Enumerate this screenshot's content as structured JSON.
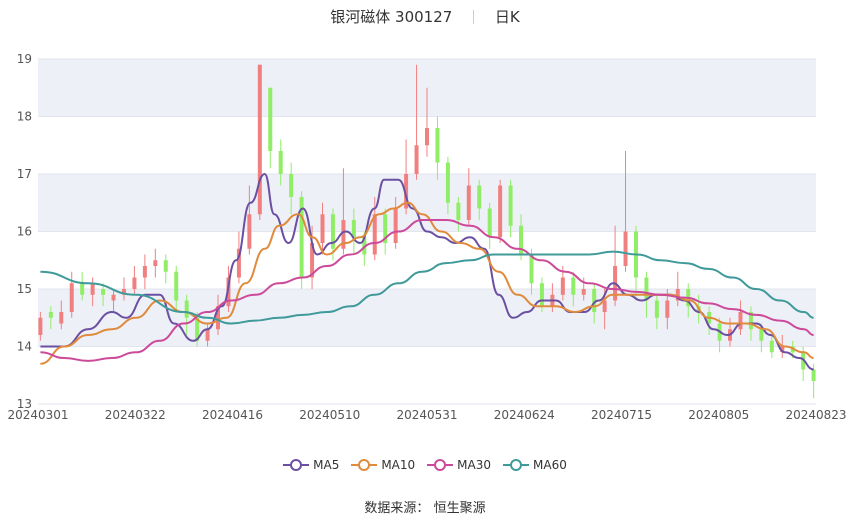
{
  "header": {
    "title": "银河磁体 300127",
    "period": "日K"
  },
  "source": {
    "label": "数据来源：",
    "value": "恒生聚源"
  },
  "chart_data": {
    "type": "candlestick",
    "ylim": [
      13,
      19
    ],
    "yticks": [
      13,
      14,
      15,
      16,
      17,
      18,
      19
    ],
    "xticks": [
      "20240301",
      "20240322",
      "20240416",
      "20240510",
      "20240531",
      "20240624",
      "20240715",
      "20240805",
      "20240823"
    ],
    "colors": {
      "up": "#f08080",
      "down": "#90ee66",
      "ma5": "#6b4fa0",
      "ma10": "#e08a3c",
      "ma30": "#cc4a99",
      "ma60": "#3f9a9a",
      "band": "#eef0f8",
      "grid": "#e2e5ee"
    },
    "series": [
      {
        "name": "MA5",
        "key": "ma5",
        "points": [
          [
            0,
            14.0
          ],
          [
            5,
            14.0
          ],
          [
            10,
            14.3
          ],
          [
            15,
            14.6
          ],
          [
            18,
            14.5
          ],
          [
            22,
            14.9
          ],
          [
            25,
            14.9
          ],
          [
            28,
            14.4
          ],
          [
            32,
            14.1
          ],
          [
            35,
            14.3
          ],
          [
            38,
            14.7
          ],
          [
            41,
            15.5
          ],
          [
            44,
            16.5
          ],
          [
            47,
            17.0
          ],
          [
            49,
            16.3
          ],
          [
            52,
            15.8
          ],
          [
            55,
            16.4
          ],
          [
            58,
            15.6
          ],
          [
            61,
            15.8
          ],
          [
            64,
            16.0
          ],
          [
            67,
            15.8
          ],
          [
            70,
            16.4
          ],
          [
            72,
            16.9
          ],
          [
            75,
            16.9
          ],
          [
            78,
            16.4
          ],
          [
            81,
            16.0
          ],
          [
            84,
            15.9
          ],
          [
            87,
            15.8
          ],
          [
            90,
            15.9
          ],
          [
            93,
            15.7
          ],
          [
            96,
            14.9
          ],
          [
            99,
            14.5
          ],
          [
            102,
            14.6
          ],
          [
            105,
            14.8
          ],
          [
            108,
            14.8
          ],
          [
            111,
            14.6
          ],
          [
            114,
            14.6
          ],
          [
            117,
            14.8
          ],
          [
            120,
            15.1
          ],
          [
            123,
            14.9
          ],
          [
            126,
            14.8
          ],
          [
            129,
            14.9
          ],
          [
            132,
            14.9
          ],
          [
            135,
            14.8
          ],
          [
            138,
            14.6
          ],
          [
            141,
            14.3
          ],
          [
            144,
            14.2
          ],
          [
            147,
            14.4
          ],
          [
            150,
            14.4
          ],
          [
            153,
            14.2
          ],
          [
            156,
            13.9
          ],
          [
            159,
            13.8
          ],
          [
            162,
            13.6
          ]
        ]
      },
      {
        "name": "MA10",
        "key": "ma10",
        "points": [
          [
            0,
            13.7
          ],
          [
            5,
            14.0
          ],
          [
            10,
            14.2
          ],
          [
            15,
            14.3
          ],
          [
            20,
            14.5
          ],
          [
            25,
            14.8
          ],
          [
            30,
            14.6
          ],
          [
            35,
            14.4
          ],
          [
            39,
            14.5
          ],
          [
            43,
            15.1
          ],
          [
            47,
            15.7
          ],
          [
            50,
            16.1
          ],
          [
            54,
            16.3
          ],
          [
            57,
            15.9
          ],
          [
            60,
            15.6
          ],
          [
            64,
            15.8
          ],
          [
            67,
            15.9
          ],
          [
            71,
            16.3
          ],
          [
            74,
            16.4
          ],
          [
            77,
            16.5
          ],
          [
            80,
            16.3
          ],
          [
            84,
            16.0
          ],
          [
            88,
            15.8
          ],
          [
            92,
            15.7
          ],
          [
            96,
            15.3
          ],
          [
            100,
            14.9
          ],
          [
            104,
            14.7
          ],
          [
            108,
            14.7
          ],
          [
            112,
            14.6
          ],
          [
            116,
            14.7
          ],
          [
            120,
            14.9
          ],
          [
            124,
            14.9
          ],
          [
            128,
            14.9
          ],
          [
            132,
            14.9
          ],
          [
            136,
            14.8
          ],
          [
            140,
            14.5
          ],
          [
            144,
            14.4
          ],
          [
            148,
            14.4
          ],
          [
            152,
            14.3
          ],
          [
            156,
            14.0
          ],
          [
            160,
            13.9
          ],
          [
            162,
            13.8
          ]
        ]
      },
      {
        "name": "MA30",
        "key": "ma30",
        "points": [
          [
            0,
            13.9
          ],
          [
            5,
            13.8
          ],
          [
            10,
            13.75
          ],
          [
            15,
            13.8
          ],
          [
            20,
            13.9
          ],
          [
            25,
            14.1
          ],
          [
            30,
            14.4
          ],
          [
            35,
            14.6
          ],
          [
            40,
            14.8
          ],
          [
            45,
            14.9
          ],
          [
            50,
            15.1
          ],
          [
            55,
            15.2
          ],
          [
            60,
            15.4
          ],
          [
            65,
            15.6
          ],
          [
            70,
            15.8
          ],
          [
            75,
            16.0
          ],
          [
            80,
            16.2
          ],
          [
            85,
            16.2
          ],
          [
            90,
            16.1
          ],
          [
            95,
            15.9
          ],
          [
            100,
            15.7
          ],
          [
            105,
            15.5
          ],
          [
            110,
            15.3
          ],
          [
            115,
            15.1
          ],
          [
            120,
            15.0
          ],
          [
            125,
            14.95
          ],
          [
            130,
            14.9
          ],
          [
            135,
            14.85
          ],
          [
            140,
            14.75
          ],
          [
            145,
            14.65
          ],
          [
            150,
            14.55
          ],
          [
            155,
            14.45
          ],
          [
            160,
            14.3
          ],
          [
            162,
            14.2
          ]
        ]
      },
      {
        "name": "MA60",
        "key": "ma60",
        "points": [
          [
            0,
            15.3
          ],
          [
            10,
            15.1
          ],
          [
            20,
            14.9
          ],
          [
            30,
            14.6
          ],
          [
            35,
            14.5
          ],
          [
            40,
            14.4
          ],
          [
            45,
            14.45
          ],
          [
            50,
            14.5
          ],
          [
            55,
            14.55
          ],
          [
            60,
            14.6
          ],
          [
            65,
            14.7
          ],
          [
            70,
            14.9
          ],
          [
            75,
            15.1
          ],
          [
            80,
            15.3
          ],
          [
            85,
            15.45
          ],
          [
            90,
            15.5
          ],
          [
            95,
            15.6
          ],
          [
            100,
            15.6
          ],
          [
            105,
            15.6
          ],
          [
            110,
            15.6
          ],
          [
            115,
            15.6
          ],
          [
            120,
            15.65
          ],
          [
            125,
            15.6
          ],
          [
            130,
            15.5
          ],
          [
            135,
            15.45
          ],
          [
            140,
            15.35
          ],
          [
            145,
            15.2
          ],
          [
            150,
            15.0
          ],
          [
            155,
            14.8
          ],
          [
            160,
            14.6
          ],
          [
            162,
            14.5
          ]
        ]
      }
    ],
    "candles": [
      [
        14.2,
        14.5,
        14.6,
        14.1
      ],
      [
        14.6,
        14.5,
        14.7,
        14.3
      ],
      [
        14.4,
        14.6,
        14.8,
        14.3
      ],
      [
        14.6,
        15.1,
        15.3,
        14.5
      ],
      [
        15.1,
        14.9,
        15.3,
        14.8
      ],
      [
        14.9,
        15.1,
        15.2,
        14.7
      ],
      [
        15.0,
        14.9,
        15.1,
        14.7
      ],
      [
        14.8,
        14.9,
        15.0,
        14.6
      ],
      [
        14.9,
        15.0,
        15.2,
        14.8
      ],
      [
        15.0,
        15.2,
        15.4,
        14.9
      ],
      [
        15.2,
        15.4,
        15.6,
        15.0
      ],
      [
        15.4,
        15.5,
        15.7,
        15.2
      ],
      [
        15.5,
        15.3,
        15.6,
        15.1
      ],
      [
        15.3,
        14.8,
        15.4,
        14.6
      ],
      [
        14.8,
        14.5,
        14.9,
        14.2
      ],
      [
        14.5,
        14.1,
        14.6,
        14.0
      ],
      [
        14.1,
        14.3,
        14.4,
        14.0
      ],
      [
        14.3,
        14.7,
        14.9,
        14.2
      ],
      [
        14.7,
        15.2,
        15.4,
        14.6
      ],
      [
        15.2,
        15.7,
        16.0,
        15.1
      ],
      [
        15.7,
        16.3,
        16.8,
        15.6
      ],
      [
        16.3,
        18.9,
        18.9,
        16.2
      ],
      [
        18.5,
        17.4,
        18.5,
        17.1
      ],
      [
        17.4,
        17.0,
        17.6,
        16.8
      ],
      [
        17.0,
        16.6,
        17.2,
        16.3
      ],
      [
        16.6,
        15.2,
        16.7,
        15.0
      ],
      [
        15.2,
        15.8,
        16.1,
        15.0
      ],
      [
        15.8,
        16.3,
        16.5,
        15.6
      ],
      [
        16.3,
        15.7,
        16.4,
        15.5
      ],
      [
        15.7,
        16.2,
        17.1,
        15.6
      ],
      [
        16.2,
        15.9,
        16.4,
        15.6
      ],
      [
        15.9,
        15.6,
        16.0,
        15.4
      ],
      [
        15.6,
        16.3,
        16.6,
        15.5
      ],
      [
        16.3,
        15.8,
        16.4,
        15.6
      ],
      [
        15.8,
        16.4,
        16.6,
        15.7
      ],
      [
        16.4,
        17.0,
        17.6,
        16.3
      ],
      [
        17.0,
        17.5,
        18.9,
        16.9
      ],
      [
        17.5,
        17.8,
        18.5,
        17.3
      ],
      [
        17.8,
        17.2,
        18.0,
        16.9
      ],
      [
        17.2,
        16.5,
        17.3,
        16.3
      ],
      [
        16.5,
        16.2,
        16.6,
        16.0
      ],
      [
        16.2,
        16.8,
        17.1,
        16.1
      ],
      [
        16.8,
        16.4,
        16.9,
        16.2
      ],
      [
        16.4,
        15.9,
        16.5,
        15.7
      ],
      [
        15.9,
        16.8,
        16.9,
        15.8
      ],
      [
        16.8,
        16.1,
        16.9,
        15.9
      ],
      [
        16.1,
        15.6,
        16.3,
        15.5
      ],
      [
        15.6,
        15.1,
        15.7,
        14.9
      ],
      [
        15.1,
        14.7,
        15.2,
        14.6
      ],
      [
        14.7,
        14.9,
        15.1,
        14.6
      ],
      [
        14.9,
        15.2,
        15.4,
        14.8
      ],
      [
        15.2,
        14.9,
        15.3,
        14.7
      ],
      [
        14.9,
        15.0,
        15.2,
        14.8
      ],
      [
        15.0,
        14.6,
        15.1,
        14.4
      ],
      [
        14.6,
        14.8,
        15.0,
        14.3
      ],
      [
        14.8,
        15.4,
        16.1,
        14.7
      ],
      [
        15.4,
        16.0,
        17.4,
        15.3
      ],
      [
        16.0,
        15.2,
        16.1,
        14.8
      ],
      [
        15.2,
        14.8,
        15.3,
        14.5
      ],
      [
        14.8,
        14.5,
        14.9,
        14.3
      ],
      [
        14.5,
        14.8,
        15.0,
        14.3
      ],
      [
        14.8,
        15.0,
        15.3,
        14.7
      ],
      [
        15.0,
        14.7,
        15.1,
        14.5
      ],
      [
        14.7,
        14.6,
        14.9,
        14.4
      ],
      [
        14.6,
        14.4,
        14.7,
        14.2
      ],
      [
        14.4,
        14.1,
        14.5,
        13.9
      ],
      [
        14.1,
        14.3,
        14.5,
        14.0
      ],
      [
        14.3,
        14.6,
        14.8,
        14.2
      ],
      [
        14.6,
        14.3,
        14.7,
        14.1
      ],
      [
        14.3,
        14.1,
        14.4,
        13.9
      ],
      [
        14.1,
        13.9,
        14.2,
        13.8
      ],
      [
        13.9,
        14.0,
        14.2,
        13.8
      ],
      [
        14.0,
        13.9,
        14.1,
        13.8
      ],
      [
        13.9,
        13.6,
        14.0,
        13.4
      ],
      [
        13.6,
        13.4,
        13.7,
        13.1
      ]
    ]
  },
  "legend": [
    {
      "name": "MA5",
      "key": "ma5"
    },
    {
      "name": "MA10",
      "key": "ma10"
    },
    {
      "name": "MA30",
      "key": "ma30"
    },
    {
      "name": "MA60",
      "key": "ma60"
    }
  ]
}
